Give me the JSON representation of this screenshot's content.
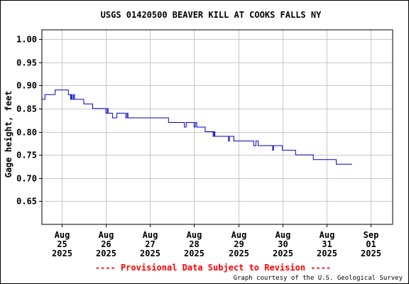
{
  "chart_data": {
    "type": "line",
    "title": "USGS 01420500 BEAVER KILL AT COOKS FALLS NY",
    "ylabel": "Gage height, feet",
    "xlabel": "",
    "ylim": [
      0.6,
      1.02
    ],
    "yticks": [
      0.65,
      0.7,
      0.75,
      0.8,
      0.85,
      0.9,
      0.95,
      1.0
    ],
    "ytick_labels": [
      "0.65",
      "0.70",
      "0.75",
      "0.80",
      "0.85",
      "0.90",
      "0.95",
      "1.00"
    ],
    "xlim": [
      24.55,
      32.5
    ],
    "xticks": [
      {
        "x": 25,
        "month": "Aug",
        "day": "25",
        "year": "2025"
      },
      {
        "x": 26,
        "month": "Aug",
        "day": "26",
        "year": "2025"
      },
      {
        "x": 27,
        "month": "Aug",
        "day": "27",
        "year": "2025"
      },
      {
        "x": 28,
        "month": "Aug",
        "day": "28",
        "year": "2025"
      },
      {
        "x": 29,
        "month": "Aug",
        "day": "29",
        "year": "2025"
      },
      {
        "x": 30,
        "month": "Aug",
        "day": "30",
        "year": "2025"
      },
      {
        "x": 31,
        "month": "Aug",
        "day": "31",
        "year": "2025"
      },
      {
        "x": 32,
        "month": "Sep",
        "day": "01",
        "year": "2025"
      }
    ],
    "grid": true,
    "series": [
      {
        "color": "#0000cc",
        "x_unit": "day of month (Aug 2025)",
        "points": [
          [
            24.55,
            0.87
          ],
          [
            24.62,
            0.87
          ],
          [
            24.62,
            0.88
          ],
          [
            24.85,
            0.88
          ],
          [
            24.85,
            0.89
          ],
          [
            25.15,
            0.89
          ],
          [
            25.15,
            0.88
          ],
          [
            25.2,
            0.88
          ],
          [
            25.2,
            0.87
          ],
          [
            25.22,
            0.87
          ],
          [
            25.22,
            0.88
          ],
          [
            25.24,
            0.88
          ],
          [
            25.24,
            0.87
          ],
          [
            25.27,
            0.87
          ],
          [
            25.27,
            0.88
          ],
          [
            25.29,
            0.88
          ],
          [
            25.29,
            0.87
          ],
          [
            25.5,
            0.87
          ],
          [
            25.5,
            0.86
          ],
          [
            25.7,
            0.86
          ],
          [
            25.7,
            0.85
          ],
          [
            26.0,
            0.85
          ],
          [
            26.0,
            0.84
          ],
          [
            26.03,
            0.84
          ],
          [
            26.03,
            0.85
          ],
          [
            26.05,
            0.85
          ],
          [
            26.05,
            0.84
          ],
          [
            26.15,
            0.84
          ],
          [
            26.15,
            0.83
          ],
          [
            26.25,
            0.83
          ],
          [
            26.25,
            0.84
          ],
          [
            26.45,
            0.84
          ],
          [
            26.45,
            0.83
          ],
          [
            26.48,
            0.83
          ],
          [
            26.48,
            0.84
          ],
          [
            26.5,
            0.84
          ],
          [
            26.5,
            0.83
          ],
          [
            27.42,
            0.83
          ],
          [
            27.42,
            0.82
          ],
          [
            27.78,
            0.82
          ],
          [
            27.78,
            0.81
          ],
          [
            27.82,
            0.81
          ],
          [
            27.82,
            0.82
          ],
          [
            28.0,
            0.82
          ],
          [
            28.0,
            0.81
          ],
          [
            28.03,
            0.81
          ],
          [
            28.03,
            0.82
          ],
          [
            28.06,
            0.82
          ],
          [
            28.06,
            0.81
          ],
          [
            28.25,
            0.81
          ],
          [
            28.25,
            0.8
          ],
          [
            28.43,
            0.8
          ],
          [
            28.43,
            0.79
          ],
          [
            28.45,
            0.79
          ],
          [
            28.45,
            0.8
          ],
          [
            28.47,
            0.8
          ],
          [
            28.47,
            0.79
          ],
          [
            28.78,
            0.79
          ],
          [
            28.78,
            0.78
          ],
          [
            28.8,
            0.78
          ],
          [
            28.8,
            0.79
          ],
          [
            28.9,
            0.79
          ],
          [
            28.9,
            0.78
          ],
          [
            29.35,
            0.78
          ],
          [
            29.35,
            0.77
          ],
          [
            29.4,
            0.77
          ],
          [
            29.4,
            0.78
          ],
          [
            29.45,
            0.78
          ],
          [
            29.45,
            0.77
          ],
          [
            29.78,
            0.77
          ],
          [
            29.78,
            0.76
          ],
          [
            29.8,
            0.76
          ],
          [
            29.8,
            0.77
          ],
          [
            30.0,
            0.77
          ],
          [
            30.0,
            0.76
          ],
          [
            30.3,
            0.76
          ],
          [
            30.3,
            0.75
          ],
          [
            30.7,
            0.75
          ],
          [
            30.7,
            0.74
          ],
          [
            31.22,
            0.74
          ],
          [
            31.22,
            0.73
          ],
          [
            31.58,
            0.73
          ]
        ]
      }
    ],
    "annotations": {
      "provisional": "---- Provisional Data Subject to Revision ----",
      "credit": "Graph courtesy of the U.S. Geological Survey"
    }
  }
}
